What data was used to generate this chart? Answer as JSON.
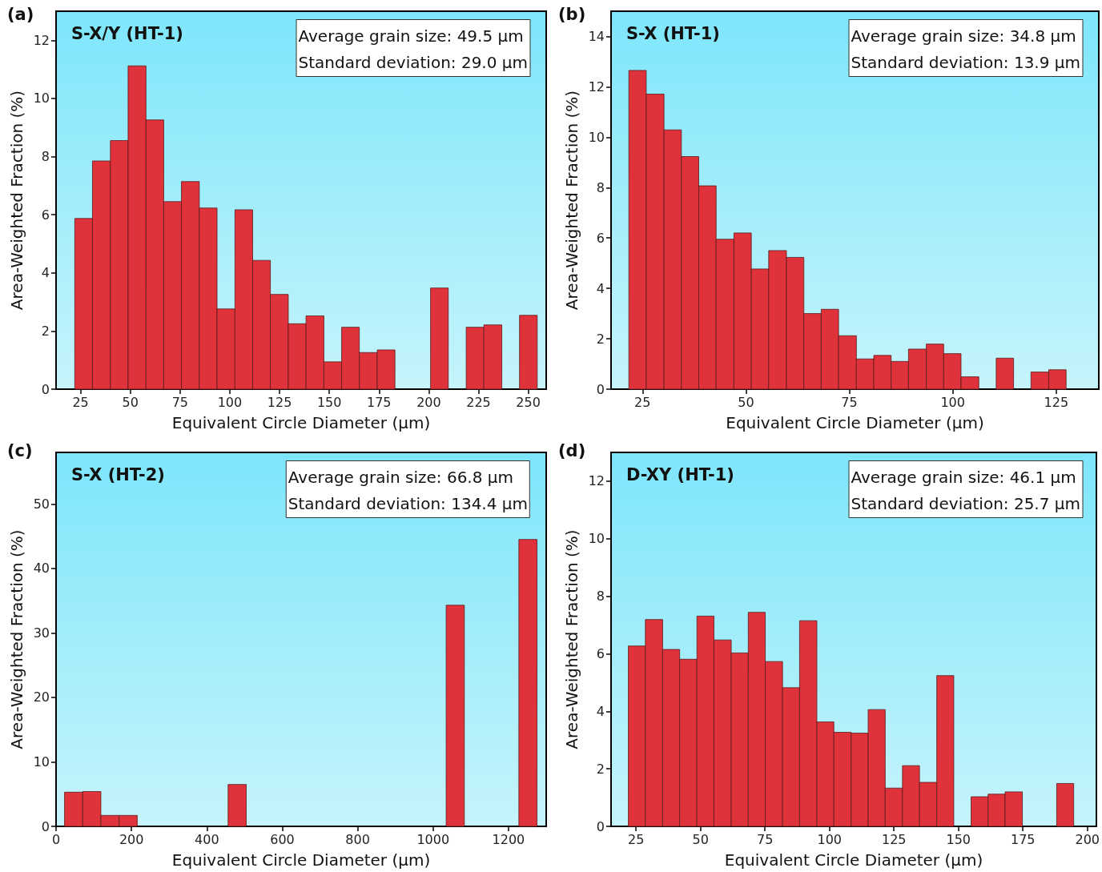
{
  "chart_data": [
    {
      "type": "histogram",
      "title": "S-X/Y (HT-1)",
      "xlabel": "Equivalent Circle Diameter (µm)",
      "ylabel": "Area-Weighted Fraction (%)",
      "annotations": [
        "(a)",
        "Average grain size: 49.5 µm",
        "Standard deviation: 29.0 µm"
      ],
      "color": "#e0323a",
      "bins": [
        22.1,
        31.0,
        40.0,
        48.9,
        57.9,
        66.8,
        75.7,
        84.7,
        93.6,
        102.6,
        111.5,
        120.4,
        129.4,
        138.3,
        147.3,
        156.2,
        165.1,
        174.1,
        183.0,
        192.0,
        200.9,
        209.8,
        218.8,
        227.7,
        236.7,
        245.6,
        254.5
      ],
      "values": [
        5.87,
        7.85,
        8.55,
        11.12,
        9.26,
        6.45,
        7.14,
        6.23,
        2.76,
        6.17,
        4.43,
        3.26,
        2.25,
        2.52,
        0.94,
        2.13,
        1.26,
        1.35,
        0,
        0,
        3.48,
        0,
        2.13,
        2.21,
        0,
        2.54
      ],
      "xlim": [
        12.7,
        259
      ],
      "xticks": [
        25,
        50,
        75,
        100,
        125,
        150,
        175,
        200,
        225,
        250
      ],
      "ylim": [
        0,
        13
      ],
      "yticks": [
        0,
        2,
        4,
        6,
        8,
        10,
        12
      ]
    },
    {
      "type": "histogram",
      "title": "S-X (HT-1)",
      "xlabel": "Equivalent Circle Diameter (µm)",
      "ylabel": "Area-Weighted Fraction (%)",
      "annotations": [
        "(b)",
        "Average grain size: 34.8 µm",
        "Standard deviation: 13.9 µm"
      ],
      "color": "#e0323a",
      "bins": [
        21.7,
        25.9,
        30.2,
        34.4,
        38.6,
        42.8,
        47.1,
        51.3,
        55.5,
        59.8,
        64.0,
        68.2,
        72.4,
        76.7,
        80.9,
        85.1,
        89.3,
        93.6,
        97.8,
        102.0,
        106.3,
        110.5,
        114.7,
        118.9,
        123.2,
        127.4
      ],
      "values": [
        12.65,
        11.71,
        10.29,
        9.23,
        8.07,
        5.95,
        6.2,
        4.77,
        5.5,
        5.23,
        3.0,
        3.17,
        2.12,
        1.2,
        1.34,
        1.1,
        1.59,
        1.79,
        1.41,
        0.49,
        0,
        1.23,
        0,
        0.68,
        0.77
      ],
      "xlim": [
        17.4,
        135.3
      ],
      "xticks": [
        25,
        50,
        75,
        100,
        125
      ],
      "ylim": [
        0,
        15
      ],
      "yticks": [
        0,
        2,
        4,
        6,
        8,
        10,
        12,
        14
      ]
    },
    {
      "type": "histogram",
      "title": "S-X (HT-2)",
      "xlabel": "Equivalent Circle Diameter (µm)",
      "ylabel": "Area-Weighted Fraction (%)",
      "annotations": [
        "(c)",
        "Average grain size: 66.8 µm",
        "Standard deviation: 134.4 µm"
      ],
      "color": "#e0323a",
      "bins": [
        22.5,
        70.7,
        118.9,
        167.1,
        215.3,
        263.5,
        311.7,
        359.9,
        408.1,
        456.3,
        504.5,
        552.7,
        600.9,
        649.1,
        697.3,
        745.5,
        793.7,
        841.9,
        890.1,
        938.3,
        986.5,
        1034.7,
        1082.9,
        1131.1,
        1179.3,
        1227.5,
        1275.7
      ],
      "values": [
        5.3,
        5.4,
        1.7,
        1.7,
        0,
        0,
        0,
        0,
        0,
        6.5,
        0,
        0,
        0,
        0,
        0,
        0,
        0,
        0,
        0,
        0,
        0,
        34.3,
        0,
        0,
        0,
        44.5
      ],
      "xlim": [
        0,
        1300
      ],
      "xticks": [
        0,
        200,
        400,
        600,
        800,
        1000,
        1200
      ],
      "ylim": [
        0,
        58
      ],
      "yticks": [
        0,
        10,
        20,
        30,
        40,
        50
      ]
    },
    {
      "type": "histogram",
      "title": "D-XY (HT-1)",
      "xlabel": "Equivalent Circle Diameter (µm)",
      "ylabel": "Area-Weighted Fraction (%)",
      "annotations": [
        "(d)",
        "Average grain size: 46.1 µm",
        "Standard deviation: 25.7 µm"
      ],
      "color": "#e0323a",
      "bins": [
        22.0,
        28.6,
        35.3,
        41.9,
        48.6,
        55.2,
        61.9,
        68.5,
        75.1,
        81.8,
        88.4,
        95.1,
        101.7,
        108.4,
        115.0,
        121.6,
        128.3,
        134.9,
        141.6,
        148.2,
        154.9,
        161.5,
        168.1,
        174.8,
        181.4,
        188.1,
        194.7
      ],
      "values": [
        6.27,
        7.19,
        6.15,
        5.81,
        7.31,
        6.48,
        6.03,
        7.44,
        5.73,
        4.82,
        7.15,
        3.63,
        3.27,
        3.24,
        4.06,
        1.33,
        2.11,
        1.53,
        5.24,
        0,
        1.03,
        1.12,
        1.2,
        0,
        0,
        1.49
      ],
      "xlim": [
        15.3,
        203.5
      ],
      "xticks": [
        25,
        50,
        75,
        100,
        125,
        150,
        175,
        200
      ],
      "ylim": [
        0,
        13
      ],
      "yticks": [
        0,
        2,
        4,
        6,
        8,
        10,
        12
      ]
    }
  ]
}
